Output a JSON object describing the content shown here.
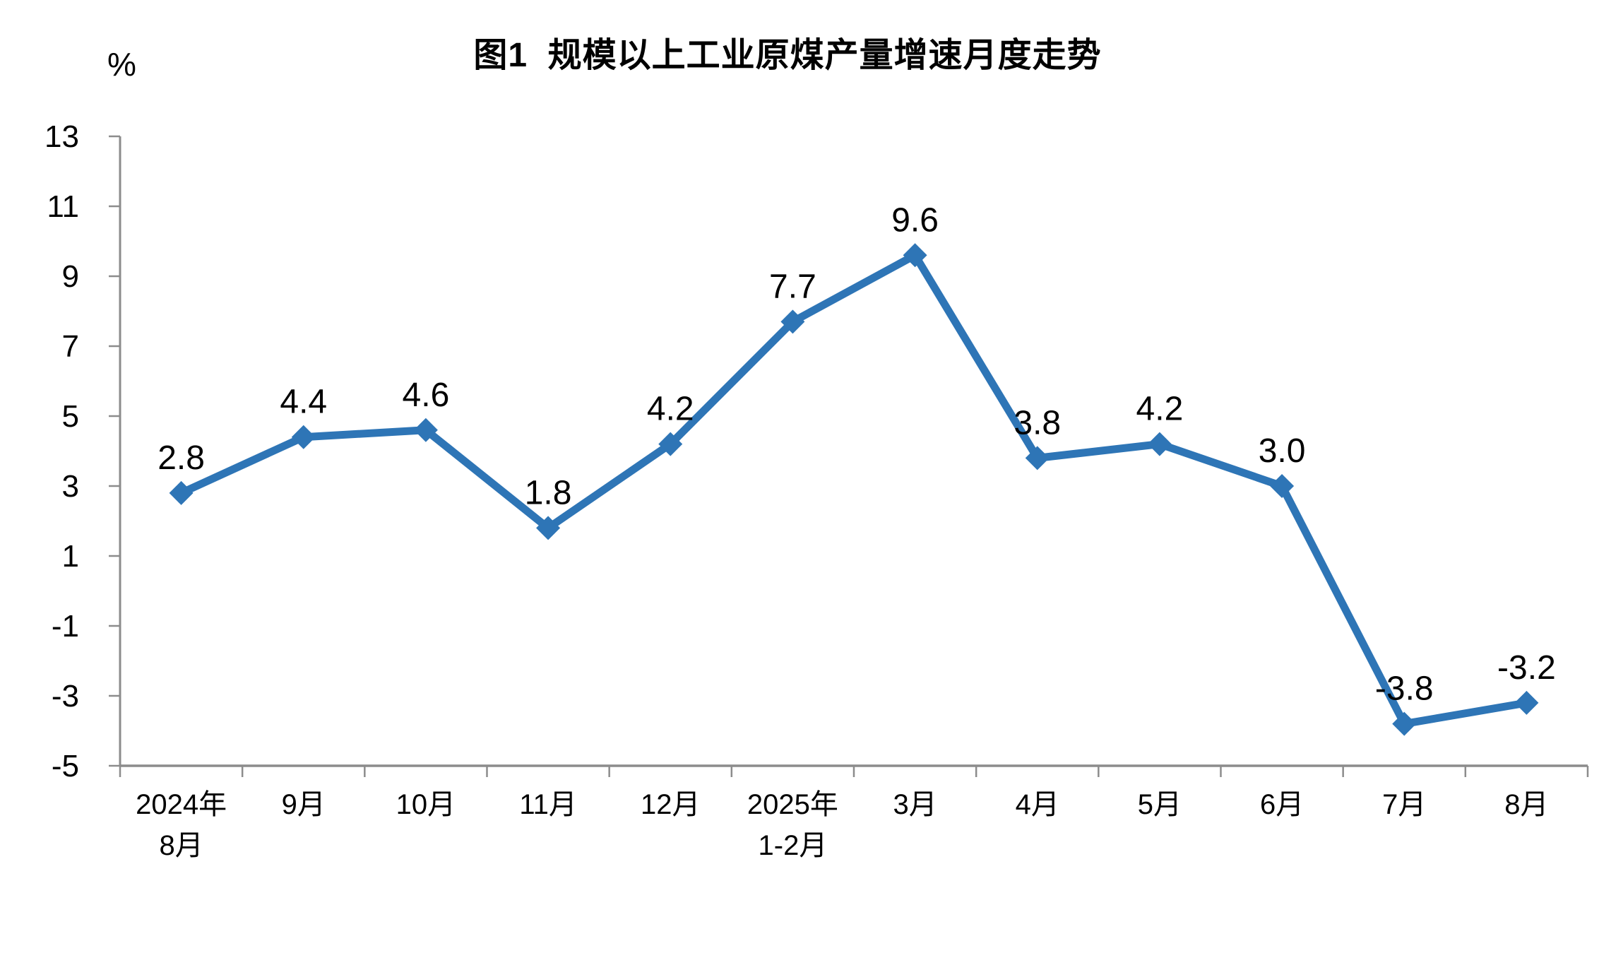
{
  "chart_data": {
    "type": "line",
    "title": "图1  规模以上工业原煤产量增速月度走势",
    "unit_label": "%",
    "categories": [
      "2024年\n8月",
      "9月",
      "10月",
      "11月",
      "12月",
      "2025年\n1-2月",
      "3月",
      "4月",
      "5月",
      "6月",
      "7月",
      "8月"
    ],
    "series": [
      {
        "values": [
          2.8,
          4.4,
          4.6,
          1.8,
          4.2,
          7.7,
          9.6,
          3.8,
          4.2,
          3.0,
          -3.8,
          -3.2
        ],
        "labels": [
          "2.8",
          "4.4",
          "4.6",
          "1.8",
          "4.2",
          "7.7",
          "9.6",
          "3.8",
          "4.2",
          "3.0",
          "-3.8",
          "-3.2"
        ],
        "color": "#2E75B6",
        "marker": "diamond"
      }
    ],
    "y_axis": {
      "min": -5,
      "max": 13,
      "tick_step": 2,
      "ticks": [
        13,
        11,
        9,
        7,
        5,
        3,
        1,
        -1,
        -3,
        -5
      ]
    },
    "x_axis": {
      "tick_marks": "between-categories"
    },
    "grid": "off",
    "legend": "none",
    "data_labels": "above-points",
    "axis_color": "#8C8C8C",
    "text_color": "#000000",
    "background_color": "#FFFFFF"
  }
}
